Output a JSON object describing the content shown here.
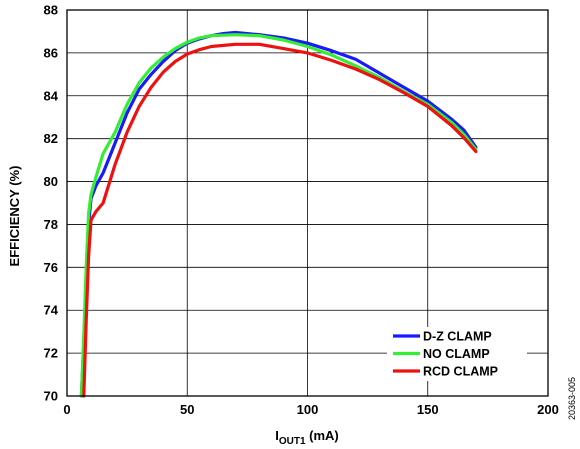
{
  "chart_data": {
    "type": "line",
    "xlabel": {
      "main": "I",
      "sub": "OUT1",
      "unit": " (mA)"
    },
    "ylabel": "EFFICIENCY (%)",
    "xlim": [
      0,
      200
    ],
    "ylim": [
      70,
      88
    ],
    "xticks": [
      0,
      50,
      100,
      150,
      200
    ],
    "yticks": [
      70,
      72,
      74,
      76,
      78,
      80,
      82,
      84,
      86,
      88
    ],
    "grid": true,
    "legend_position": "lower-right",
    "figure_id": "20363-005",
    "series": [
      {
        "name": "D-Z CLAMP",
        "color": "#1a1aff",
        "points": [
          [
            6,
            70
          ],
          [
            7,
            72.5
          ],
          [
            8,
            75.5
          ],
          [
            9,
            78
          ],
          [
            10,
            79.2
          ],
          [
            12,
            79.8
          ],
          [
            15,
            80.4
          ],
          [
            20,
            81.8
          ],
          [
            25,
            83.2
          ],
          [
            30,
            84.3
          ],
          [
            35,
            85.0
          ],
          [
            40,
            85.6
          ],
          [
            45,
            86.1
          ],
          [
            50,
            86.45
          ],
          [
            55,
            86.65
          ],
          [
            60,
            86.8
          ],
          [
            65,
            86.9
          ],
          [
            70,
            86.95
          ],
          [
            80,
            86.85
          ],
          [
            90,
            86.7
          ],
          [
            100,
            86.45
          ],
          [
            110,
            86.1
          ],
          [
            120,
            85.7
          ],
          [
            130,
            85.05
          ],
          [
            140,
            84.4
          ],
          [
            150,
            83.75
          ],
          [
            160,
            82.9
          ],
          [
            165,
            82.4
          ],
          [
            170,
            81.6
          ]
        ]
      },
      {
        "name": "NO CLAMP",
        "color": "#33ee33",
        "points": [
          [
            6,
            70
          ],
          [
            7,
            72.8
          ],
          [
            8,
            76
          ],
          [
            9,
            78.5
          ],
          [
            10,
            79.4
          ],
          [
            12,
            80.2
          ],
          [
            15,
            81.3
          ],
          [
            20,
            82.3
          ],
          [
            25,
            83.6
          ],
          [
            30,
            84.6
          ],
          [
            35,
            85.3
          ],
          [
            40,
            85.8
          ],
          [
            45,
            86.2
          ],
          [
            50,
            86.5
          ],
          [
            55,
            86.7
          ],
          [
            60,
            86.8
          ],
          [
            70,
            86.85
          ],
          [
            80,
            86.8
          ],
          [
            90,
            86.6
          ],
          [
            100,
            86.3
          ],
          [
            110,
            85.9
          ],
          [
            120,
            85.4
          ],
          [
            130,
            84.85
          ],
          [
            140,
            84.2
          ],
          [
            150,
            83.6
          ],
          [
            160,
            82.75
          ],
          [
            165,
            82.2
          ],
          [
            170,
            81.5
          ]
        ]
      },
      {
        "name": "RCD CLAMP",
        "color": "#ee1111",
        "points": [
          [
            7,
            70
          ],
          [
            8,
            73.5
          ],
          [
            9,
            76.5
          ],
          [
            10,
            78.2
          ],
          [
            12,
            78.6
          ],
          [
            15,
            79.0
          ],
          [
            20,
            80.8
          ],
          [
            25,
            82.3
          ],
          [
            30,
            83.5
          ],
          [
            35,
            84.4
          ],
          [
            40,
            85.1
          ],
          [
            45,
            85.6
          ],
          [
            50,
            85.95
          ],
          [
            55,
            86.15
          ],
          [
            60,
            86.3
          ],
          [
            70,
            86.4
          ],
          [
            80,
            86.4
          ],
          [
            90,
            86.2
          ],
          [
            100,
            86.0
          ],
          [
            110,
            85.65
          ],
          [
            120,
            85.25
          ],
          [
            130,
            84.75
          ],
          [
            140,
            84.15
          ],
          [
            150,
            83.5
          ],
          [
            160,
            82.6
          ],
          [
            165,
            82.05
          ],
          [
            170,
            81.4
          ]
        ]
      }
    ]
  }
}
